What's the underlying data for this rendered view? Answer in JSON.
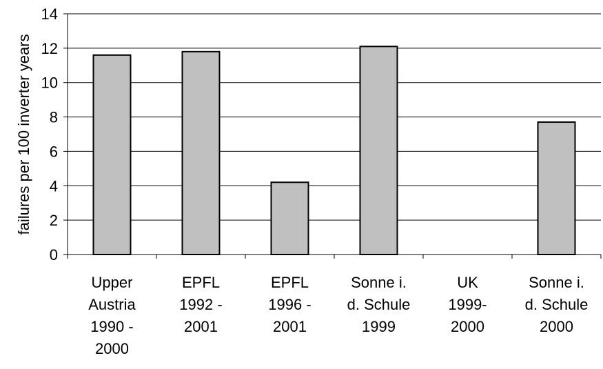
{
  "chart_data": {
    "type": "bar",
    "categories": [
      [
        "Upper",
        "Austria",
        "1990 -",
        "2000"
      ],
      [
        "EPFL",
        "1992 -",
        "2001"
      ],
      [
        "EPFL",
        "1996 -",
        "2001"
      ],
      [
        "Sonne i.",
        "d. Schule",
        "1999"
      ],
      [
        "UK",
        "1999-",
        "2000"
      ],
      [
        "Sonne i.",
        "d. Schule",
        "2000"
      ]
    ],
    "values": [
      11.6,
      11.8,
      4.2,
      12.1,
      null,
      7.7
    ],
    "title": "",
    "xlabel": "",
    "ylabel": "failures per 100 inverter years",
    "ylim": [
      0,
      14
    ],
    "yticks": [
      0,
      2,
      4,
      6,
      8,
      10,
      12,
      14
    ],
    "grid": true,
    "colors": {
      "bar_fill": "#c0c0c0",
      "bar_stroke": "#000000",
      "grid": "#000000"
    }
  }
}
